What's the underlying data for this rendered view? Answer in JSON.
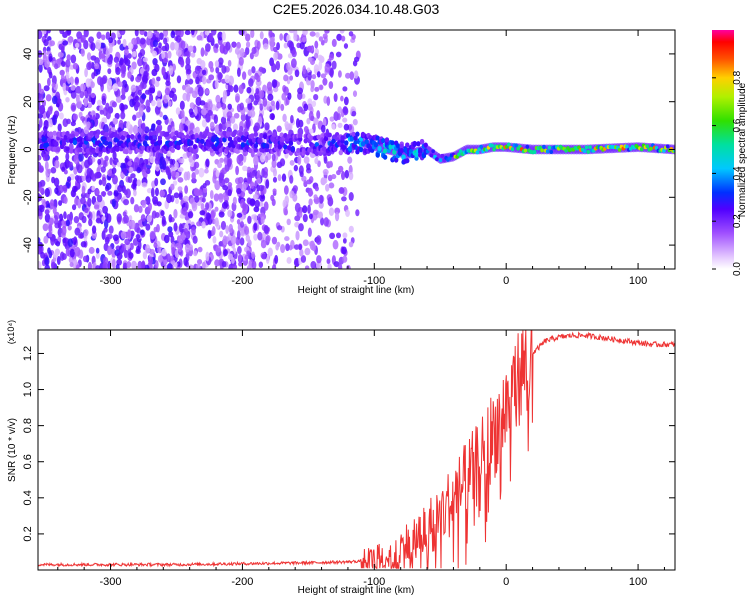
{
  "title": "C2E5.2026.034.10.48.G03",
  "chart_data": [
    {
      "type": "heatmap",
      "title": "C2E5.2026.034.10.48.G03",
      "xlabel": "Height of straight line (km)",
      "ylabel": "Frequency (Hz)",
      "xlim": [
        -355,
        128
      ],
      "ylim": [
        -50,
        50
      ],
      "xticks": [
        -300,
        -200,
        -100,
        0,
        100
      ],
      "yticks": [
        -40,
        -20,
        0,
        20,
        40
      ],
      "xtick_labels": [
        "-300",
        "-200",
        "-100",
        "0",
        "100"
      ],
      "ytick_labels": [
        "-40",
        "-20",
        "0",
        "20",
        "40"
      ],
      "colorbar": {
        "label": "Normalized spectral amplitude",
        "range": [
          0,
          1
        ],
        "ticks": [
          0.0,
          0.2,
          0.4,
          0.6,
          0.8
        ],
        "tick_labels": [
          "0.0",
          "0.2",
          "0.4",
          "0.6",
          "0.8"
        ]
      },
      "ridge": [
        {
          "x": -355,
          "f": 3
        },
        {
          "x": -300,
          "f": 3
        },
        {
          "x": -250,
          "f": 3
        },
        {
          "x": -200,
          "f": 3
        },
        {
          "x": -150,
          "f": 2
        },
        {
          "x": -110,
          "f": 3
        },
        {
          "x": -90,
          "f": 0
        },
        {
          "x": -75,
          "f": -2
        },
        {
          "x": -60,
          "f": 0
        },
        {
          "x": -50,
          "f": -4
        },
        {
          "x": -40,
          "f": -3
        },
        {
          "x": -30,
          "f": 0
        },
        {
          "x": -20,
          "f": 0
        },
        {
          "x": -10,
          "f": 1
        },
        {
          "x": 0,
          "f": 1
        },
        {
          "x": 20,
          "f": 0
        },
        {
          "x": 60,
          "f": 0
        },
        {
          "x": 100,
          "f": 1
        },
        {
          "x": 128,
          "f": 0
        }
      ]
    },
    {
      "type": "line",
      "xlabel": "Height of straight line (km)",
      "ylabel": "SNR (10 * v/v)",
      "yscale_label": "(x10⁴)",
      "xlim": [
        -355,
        128
      ],
      "ylim": [
        0,
        1.33
      ],
      "xticks": [
        -300,
        -200,
        -100,
        0,
        100
      ],
      "yticks": [
        0.2,
        0.4,
        0.6,
        0.8,
        1.0,
        1.2
      ],
      "xtick_labels": [
        "-300",
        "-200",
        "-100",
        "0",
        "100"
      ],
      "ytick_labels": [
        "0.2",
        "0.4",
        "0.6",
        "0.8",
        "1.0",
        "1.2"
      ],
      "color": "#ee3333",
      "series": [
        {
          "name": "SNR",
          "x": [
            -355,
            -300,
            -250,
            -200,
            -150,
            -120,
            -110,
            -100,
            -90,
            -80,
            -70,
            -60,
            -50,
            -40,
            -30,
            -20,
            -10,
            0,
            10,
            20,
            30,
            40,
            50,
            60,
            70,
            80,
            90,
            100,
            110,
            128
          ],
          "y": [
            0.03,
            0.03,
            0.03,
            0.035,
            0.04,
            0.045,
            0.05,
            0.06,
            0.08,
            0.12,
            0.17,
            0.23,
            0.31,
            0.4,
            0.5,
            0.6,
            0.75,
            0.9,
            1.08,
            1.2,
            1.27,
            1.29,
            1.3,
            1.3,
            1.29,
            1.28,
            1.27,
            1.26,
            1.25,
            1.25
          ]
        }
      ]
    }
  ]
}
